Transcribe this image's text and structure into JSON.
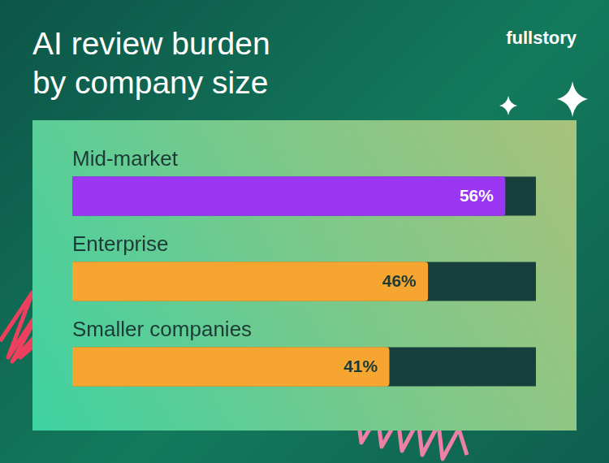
{
  "brand": "fullstory",
  "chart_data": {
    "type": "bar",
    "title": "AI review burden by company size",
    "orientation": "horizontal",
    "categories": [
      "Mid-market",
      "Enterprise",
      "Smaller companies"
    ],
    "values": [
      56,
      46,
      41
    ],
    "value_labels": [
      "56%",
      "46%",
      "41%"
    ],
    "colors": [
      "#9b37f2",
      "#f7a531",
      "#f7a531"
    ],
    "xlim": [
      0,
      60
    ],
    "grid": false,
    "data_labels": true,
    "tick_labels": false
  }
}
